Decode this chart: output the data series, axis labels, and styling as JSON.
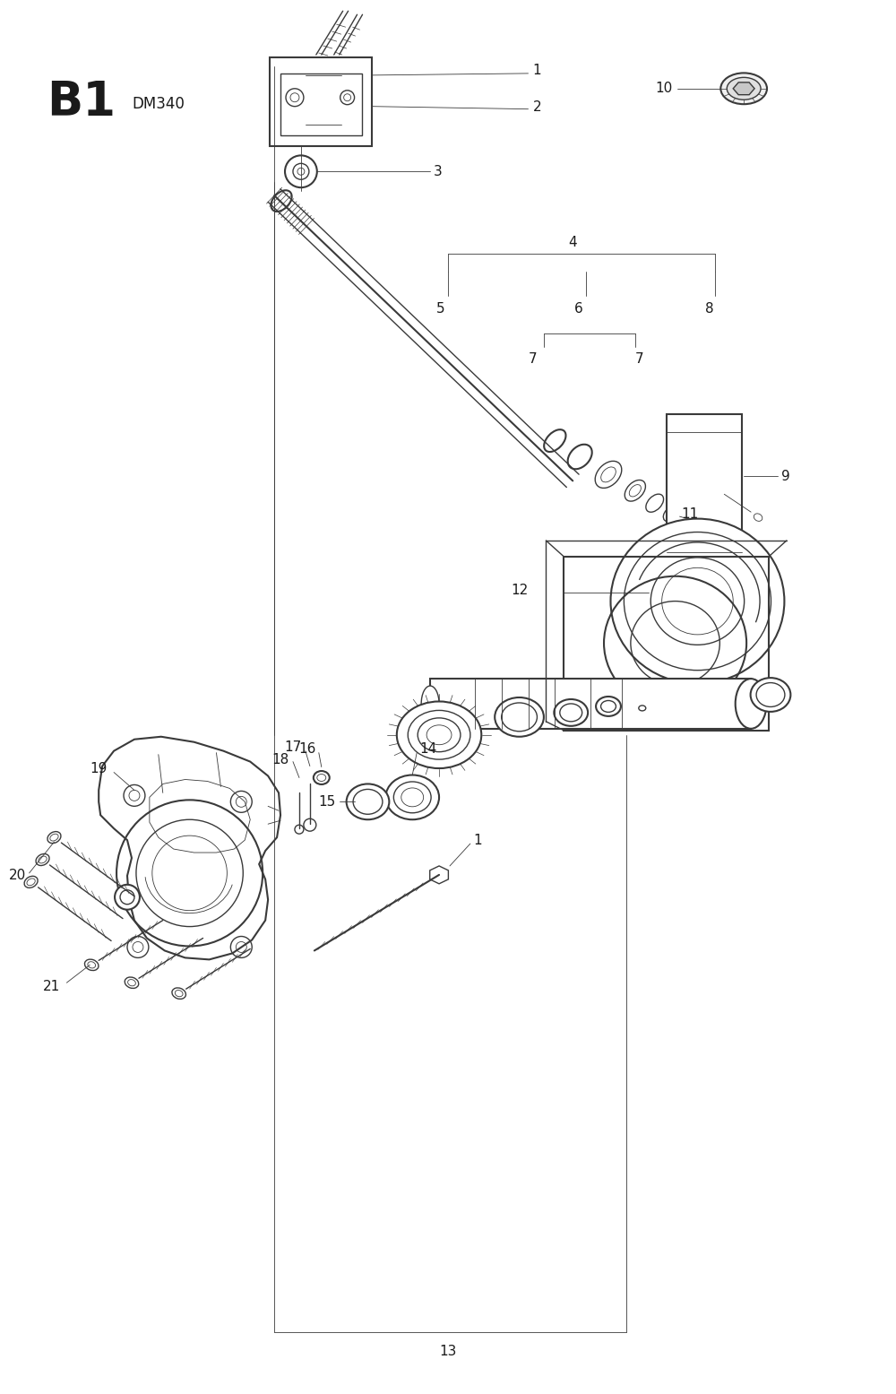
{
  "bg_color": "#ffffff",
  "line_color": "#3a3a3a",
  "label_color": "#1a1a1a",
  "figsize": [
    10.0,
    15.55
  ],
  "dpi": 100,
  "title": "B1",
  "subtitle": "DM340"
}
